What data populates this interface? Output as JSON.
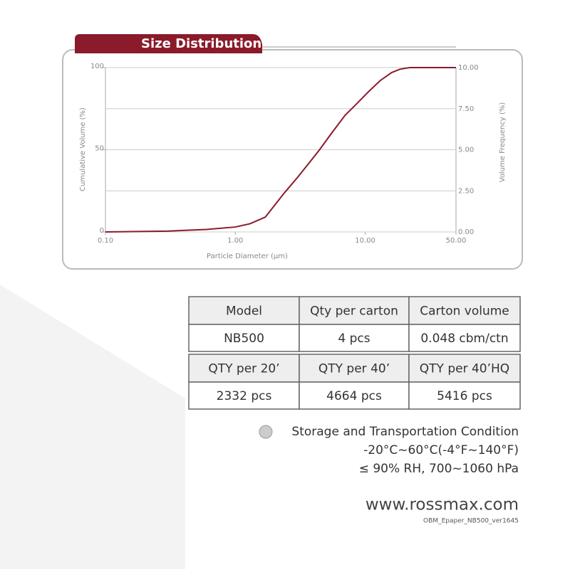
{
  "chart_data": {
    "type": "line",
    "title": "Size Distribution",
    "xlabel": "Particle Diameter (μm)",
    "ylabel": "Cumulative Volume (%)",
    "y2label": "Volume Frequency (%)",
    "xscale": "log",
    "color": "#8b1a2a",
    "grid": true,
    "xlim": [
      0.1,
      50
    ],
    "xticks": [
      {
        "value": 0.1,
        "label": "0.10"
      },
      {
        "value": 1,
        "label": "1.00"
      },
      {
        "value": 10,
        "label": "10.00"
      },
      {
        "value": 50,
        "label": "50.00"
      }
    ],
    "ylim": [
      0,
      100
    ],
    "yticks": [
      0,
      50,
      100
    ],
    "y2lim": [
      0,
      10
    ],
    "y2ticks": [
      {
        "value": 0,
        "label": "0.00"
      },
      {
        "value": 2.5,
        "label": "2.50"
      },
      {
        "value": 5,
        "label": "5.00"
      },
      {
        "value": 7.5,
        "label": "7.50"
      },
      {
        "value": 10,
        "label": "10.00"
      }
    ],
    "x": [
      0.1,
      0.3,
      0.6,
      1,
      1.3,
      1.7,
      2.4,
      3,
      3.7,
      4.45,
      5.5,
      7,
      8.6,
      10.5,
      13,
      16,
      18.5,
      22,
      30,
      50
    ],
    "values": [
      0,
      0.5,
      1.5,
      3,
      5,
      9,
      24,
      33,
      42,
      50,
      60,
      71,
      78,
      85,
      92,
      97,
      99,
      100,
      100,
      100
    ]
  },
  "table": {
    "header1": [
      "Model",
      "Qty per carton",
      "Carton volume"
    ],
    "row1": [
      "NB500",
      "4 pcs",
      "0.048 cbm/ctn"
    ],
    "header2": [
      "QTY per 20’",
      "QTY per 40’",
      "QTY per 40’HQ"
    ],
    "row2": [
      "2332 pcs",
      "4664 pcs",
      "5416 pcs"
    ]
  },
  "storage": {
    "title": "Storage and Transportation Condition",
    "lines": [
      "-20°C~60°C(-4°F~140°F)",
      "≤ 90% RH, 700~1060 hPa"
    ]
  },
  "footer": {
    "website": "www.rossmax.com",
    "version": "OBM_Epaper_NB500_ver1645"
  }
}
